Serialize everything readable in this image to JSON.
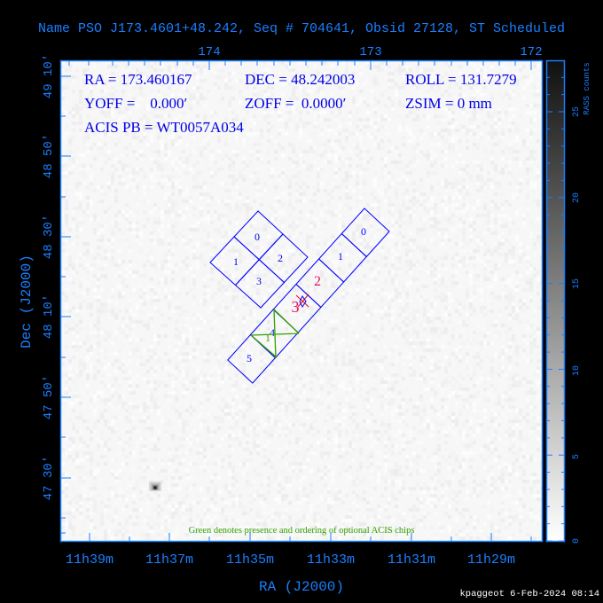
{
  "title": "Name PSO J173.4601+48.242, Seq # 704641, Obsid 27128, ST Scheduled",
  "info": {
    "ra": "RA = 173.460167",
    "dec": "DEC = 48.242003",
    "roll": "ROLL = 131.7279",
    "yoff": "YOFF =    0.000′",
    "zoff": "ZOFF =  0.0000′",
    "zsim": "ZSIM = 0 mm",
    "acis_pb": "ACIS PB = WT0057A034"
  },
  "note": "Green denotes presence and ordering of optional ACIS chips",
  "footer": "kpaggeot  6-Feb-2024 08:14",
  "colors": {
    "axis": "#1a7fff",
    "chips": "#0000ff",
    "optional": "#33a000",
    "highlight_chips": "#e0106a",
    "aimpoint_marker": "#ff0000"
  },
  "chart_data": {
    "type": "heatmap",
    "description_type": "sky image with ACIS field-of-view overlay",
    "xlabel": "RA (J2000)",
    "ylabel": "Dec (J2000)",
    "x_ticks_bottom": [
      "11h39m",
      "11h37m",
      "11h35m",
      "11h33m",
      "11h31m",
      "11h29m"
    ],
    "x_ticks_top": [
      "174",
      "173",
      "172"
    ],
    "y_ticks": [
      "49 10′",
      "48 50′",
      "48 30′",
      "48 10′",
      "47 50′",
      "47 30′"
    ],
    "colorbar": {
      "label": "RASS counts",
      "ticks": [
        "0",
        "5",
        "10",
        "15",
        "20",
        "25"
      ],
      "range": [
        0,
        28
      ],
      "colormap": "white-to-black"
    },
    "acis_i_chips": [
      "0",
      "1",
      "2",
      "3"
    ],
    "acis_s_chips": [
      "0",
      "1",
      "2",
      "3",
      "4",
      "5"
    ],
    "highlighted_chips": [
      "S2",
      "S3"
    ],
    "optional_chip_label": "1",
    "sources": [
      {
        "ra": "11h37m25s",
        "dec": "47 25′",
        "counts": 28
      }
    ]
  }
}
